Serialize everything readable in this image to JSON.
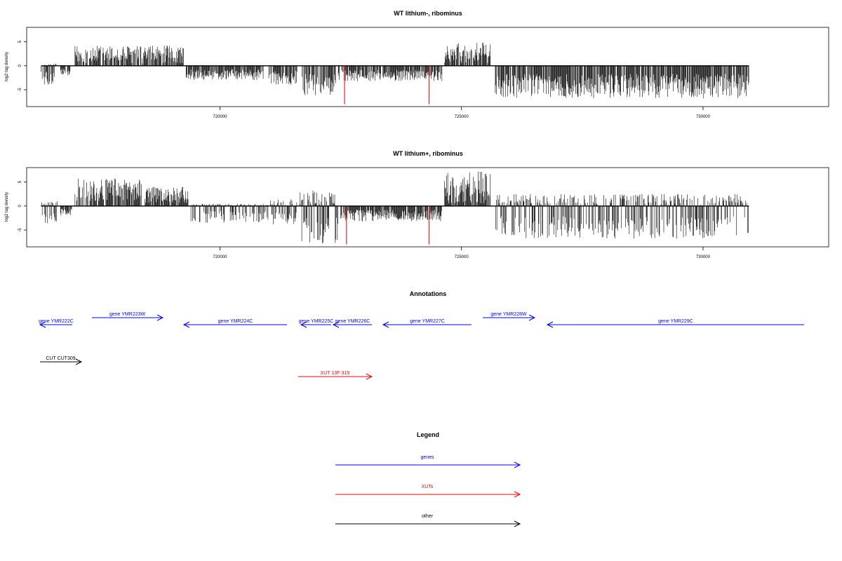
{
  "chart_data": [
    {
      "type": "bar",
      "title": "WT lithium-, ribominus",
      "ylabel": "log2 tag density",
      "xlabel": "",
      "xlim": [
        716000,
        732600
      ],
      "ylim": [
        -8.5,
        8
      ],
      "xticks": [
        720000,
        725000,
        730000
      ],
      "xtick_labels": [
        "720000",
        "725000",
        "730000"
      ],
      "yticks": [
        -5,
        0,
        5
      ],
      "ytick_labels": [
        "-5",
        "0",
        "5"
      ],
      "grid": false,
      "bar_color": "#000000",
      "highlight_color": "#ee2222",
      "highlights": [
        {
          "x": 722580,
          "value": -8.0
        },
        {
          "x": 724330,
          "value": -8.0
        }
      ],
      "profile": [
        {
          "from": 716300,
          "to": 716650,
          "min": -4.0,
          "max": 0.5
        },
        {
          "from": 716700,
          "to": 716900,
          "min": -2.0,
          "max": 0.0
        },
        {
          "from": 717000,
          "to": 719250,
          "min": 0.5,
          "max": 4.2
        },
        {
          "from": 719300,
          "to": 720900,
          "min": -3.0,
          "max": 0.0
        },
        {
          "from": 721000,
          "to": 721600,
          "min": -4.0,
          "max": 0.2
        },
        {
          "from": 721700,
          "to": 722400,
          "min": -6.3,
          "max": 0.0
        },
        {
          "from": 722450,
          "to": 724600,
          "min": -3.2,
          "max": 0.0
        },
        {
          "from": 724650,
          "to": 725600,
          "min": 0.5,
          "max": 4.8
        },
        {
          "from": 725700,
          "to": 730950,
          "min": -6.8,
          "max": 0.0
        }
      ]
    },
    {
      "type": "bar",
      "title": "WT lithium+, ribominus",
      "ylabel": "log2 tag density",
      "xlabel": "",
      "xlim": [
        716000,
        732600
      ],
      "ylim": [
        -8.5,
        8
      ],
      "xticks": [
        720000,
        725000,
        730000
      ],
      "xtick_labels": [
        "720000",
        "725000",
        "730000"
      ],
      "yticks": [
        -5,
        0,
        5
      ],
      "ytick_labels": [
        "-5",
        "0",
        "5"
      ],
      "grid": false,
      "bar_color": "#000000",
      "highlight_color": "#ee2222",
      "highlights": [
        {
          "x": 722620,
          "value": -8.0
        },
        {
          "x": 724330,
          "value": -8.0
        }
      ],
      "profile": [
        {
          "from": 716300,
          "to": 716650,
          "min": -4.0,
          "max": 1.0
        },
        {
          "from": 716700,
          "to": 716950,
          "min": -2.0,
          "max": 0.0
        },
        {
          "from": 717000,
          "to": 718400,
          "min": 0.8,
          "max": 6.0
        },
        {
          "from": 718450,
          "to": 719350,
          "min": 0.5,
          "max": 4.0
        },
        {
          "from": 719400,
          "to": 721000,
          "min": -3.5,
          "max": 0.5
        },
        {
          "from": 721050,
          "to": 721600,
          "min": -4.0,
          "max": 1.5
        },
        {
          "from": 721650,
          "to": 722450,
          "min": -8.0,
          "max": 3.5
        },
        {
          "from": 722500,
          "to": 724600,
          "min": -3.2,
          "max": 0.0
        },
        {
          "from": 724650,
          "to": 725600,
          "min": 0.5,
          "max": 7.2
        },
        {
          "from": 725700,
          "to": 730950,
          "min": -6.8,
          "max": 2.5
        }
      ]
    }
  ],
  "annotations": {
    "title": "Annotations",
    "genes": [
      {
        "label": "gene YMR222C",
        "x1": 103,
        "x2": 57,
        "y": 463,
        "dir": "left",
        "color": "#0000ff"
      },
      {
        "label": "gene YMR223W",
        "x1": 131,
        "x2": 232,
        "y": 453,
        "dir": "right",
        "color": "#0000ff"
      },
      {
        "label": "gene YMR224C",
        "x1": 409,
        "x2": 262,
        "y": 463,
        "dir": "left",
        "color": "#0000ff"
      },
      {
        "label": "gene YMR225C",
        "x1": 472,
        "x2": 429,
        "y": 463,
        "dir": "left",
        "color": "#0000ff"
      },
      {
        "label": "gene YMR226C",
        "x1": 530,
        "x2": 475,
        "y": 463,
        "dir": "left",
        "color": "#0000ff"
      },
      {
        "label": "gene YMR227C",
        "x1": 672,
        "x2": 546,
        "y": 463,
        "dir": "left",
        "color": "#0000ff"
      },
      {
        "label": "gene YMR228W",
        "x1": 688,
        "x2": 762,
        "y": 453,
        "dir": "right",
        "color": "#0000ff"
      },
      {
        "label": "gene YMR229C",
        "x1": 1146,
        "x2": 780,
        "y": 463,
        "dir": "left",
        "color": "#0000ff"
      }
    ],
    "other": [
      {
        "label": "CUT CUT309",
        "x1": 57,
        "x2": 116,
        "y": 516,
        "dir": "right",
        "color": "#000000"
      }
    ],
    "xuts": [
      {
        "label": "XUT 13F-315",
        "x1": 425,
        "x2": 530,
        "y": 537,
        "dir": "right",
        "color": "#ff0000"
      }
    ]
  },
  "legend": {
    "title": "Legend",
    "items": [
      {
        "label": "genes",
        "color": "#0000ff",
        "y": 663
      },
      {
        "label": "XUTs",
        "color": "#ff0000",
        "y": 705
      },
      {
        "label": "other",
        "color": "#000000",
        "y": 747
      }
    ]
  }
}
